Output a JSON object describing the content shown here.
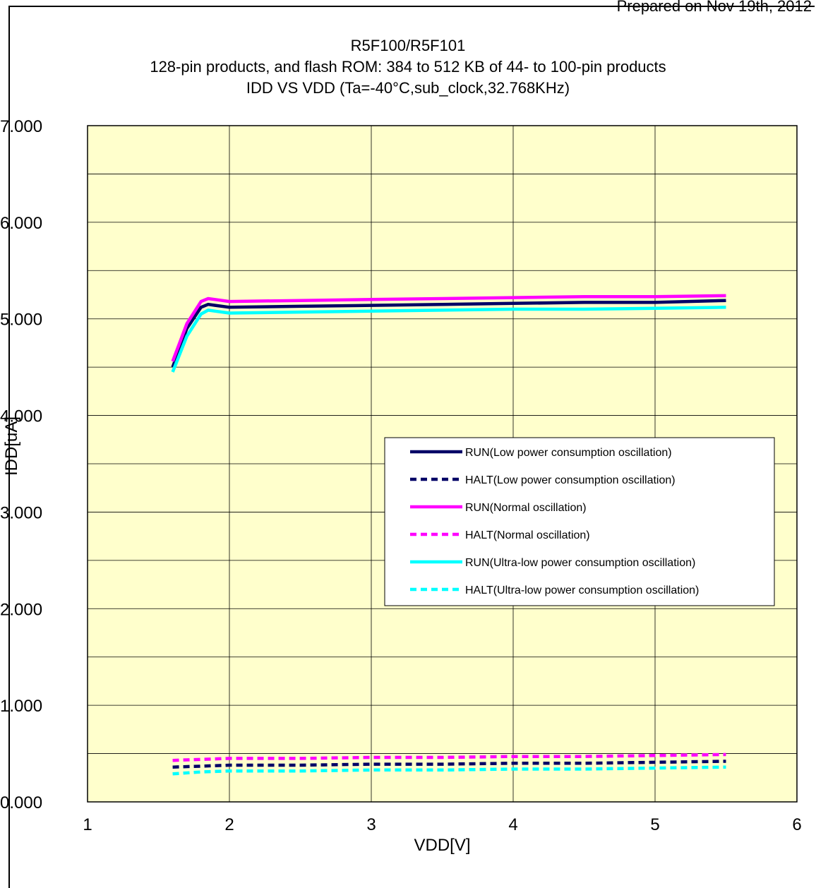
{
  "header": {
    "prepared": "Prepared on Nov 19th, 2012"
  },
  "chart_data": {
    "type": "line",
    "title_lines": [
      "R5F100/R5F101",
      "128-pin products, and flash ROM: 384 to 512 KB of 44- to 100-pin products",
      "IDD VS VDD (Ta=-40°C,sub_clock,32.768KHz)"
    ],
    "xlabel": "VDD[V]",
    "ylabel": "IDD[uA]",
    "xlim": [
      1,
      6
    ],
    "ylim": [
      0,
      7
    ],
    "x_ticks": [
      "1",
      "2",
      "3",
      "4",
      "5",
      "6"
    ],
    "y_ticks": [
      "0.000",
      "1.000",
      "2.000",
      "3.000",
      "4.000",
      "5.000",
      "6.000",
      "7.000"
    ],
    "grid": true,
    "legend_position": "center-right",
    "plot_background": "#FFFFCC",
    "series": [
      {
        "name": "RUN(Low power consumption oscillation)",
        "color": "#000066",
        "dash": "solid",
        "x": [
          1.6,
          1.7,
          1.8,
          1.85,
          1.9,
          2.0,
          2.5,
          3.0,
          3.5,
          4.0,
          4.5,
          5.0,
          5.5
        ],
        "y": [
          4.5,
          4.9,
          5.12,
          5.15,
          5.14,
          5.12,
          5.13,
          5.14,
          5.15,
          5.16,
          5.17,
          5.17,
          5.19
        ]
      },
      {
        "name": "HALT(Low power consumption oscillation)",
        "color": "#000066",
        "dash": "dashed",
        "x": [
          1.6,
          1.8,
          2.0,
          2.5,
          3.0,
          3.5,
          4.0,
          4.5,
          5.0,
          5.5
        ],
        "y": [
          0.36,
          0.37,
          0.38,
          0.38,
          0.39,
          0.39,
          0.4,
          0.4,
          0.41,
          0.42
        ]
      },
      {
        "name": "RUN(Normal oscillation)",
        "color": "#FF00FF",
        "dash": "solid",
        "x": [
          1.6,
          1.7,
          1.8,
          1.85,
          1.9,
          2.0,
          2.5,
          3.0,
          3.5,
          4.0,
          4.5,
          5.0,
          5.5
        ],
        "y": [
          4.56,
          4.95,
          5.18,
          5.21,
          5.2,
          5.18,
          5.19,
          5.2,
          5.21,
          5.22,
          5.23,
          5.23,
          5.24
        ]
      },
      {
        "name": "HALT(Normal oscillation)",
        "color": "#FF00FF",
        "dash": "dashed",
        "x": [
          1.6,
          1.8,
          2.0,
          2.5,
          3.0,
          3.5,
          4.0,
          4.5,
          5.0,
          5.5
        ],
        "y": [
          0.43,
          0.44,
          0.45,
          0.45,
          0.46,
          0.46,
          0.47,
          0.47,
          0.48,
          0.49
        ]
      },
      {
        "name": "RUN(Ultra-low power consumption oscillation)",
        "color": "#00FFFF",
        "dash": "solid",
        "x": [
          1.6,
          1.7,
          1.8,
          1.85,
          1.9,
          2.0,
          2.5,
          3.0,
          3.5,
          4.0,
          4.5,
          5.0,
          5.5
        ],
        "y": [
          4.45,
          4.82,
          5.05,
          5.09,
          5.08,
          5.06,
          5.07,
          5.08,
          5.09,
          5.1,
          5.1,
          5.11,
          5.12
        ]
      },
      {
        "name": "HALT(Ultra-low power consumption oscillation)",
        "color": "#00FFFF",
        "dash": "dashed",
        "x": [
          1.6,
          1.8,
          2.0,
          2.5,
          3.0,
          3.5,
          4.0,
          4.5,
          5.0,
          5.5
        ],
        "y": [
          0.29,
          0.31,
          0.32,
          0.32,
          0.33,
          0.33,
          0.34,
          0.34,
          0.35,
          0.36
        ]
      }
    ]
  }
}
